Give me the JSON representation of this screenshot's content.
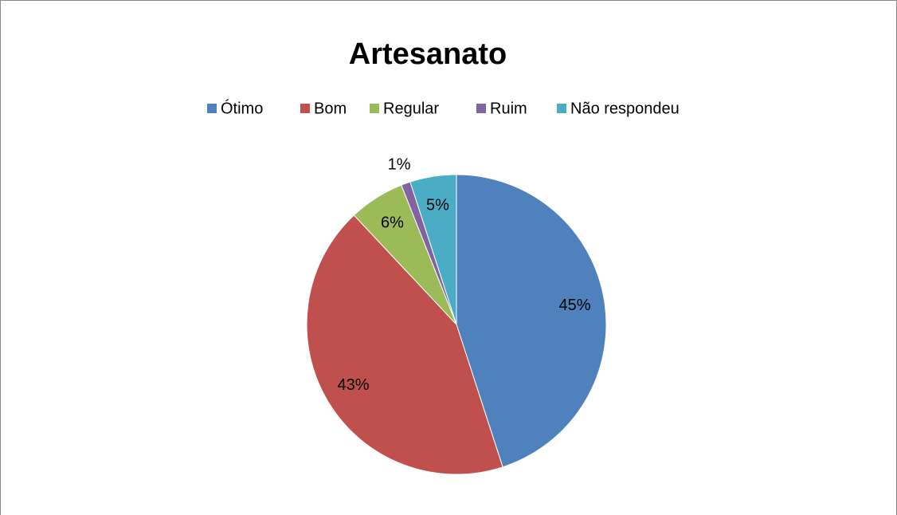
{
  "chart_data": {
    "type": "pie",
    "title": "Artesanato",
    "categories": [
      "Ótimo",
      "Bom",
      "Regular",
      "Ruim",
      "Não respondeu"
    ],
    "values": [
      45,
      43,
      6,
      1,
      5
    ],
    "value_labels": [
      "45%",
      "43%",
      "6%",
      "1%",
      "5%"
    ],
    "colors": [
      "#4f81bd",
      "#c0504d",
      "#9bbb59",
      "#8064a2",
      "#4bacc6"
    ],
    "legend": "top"
  }
}
